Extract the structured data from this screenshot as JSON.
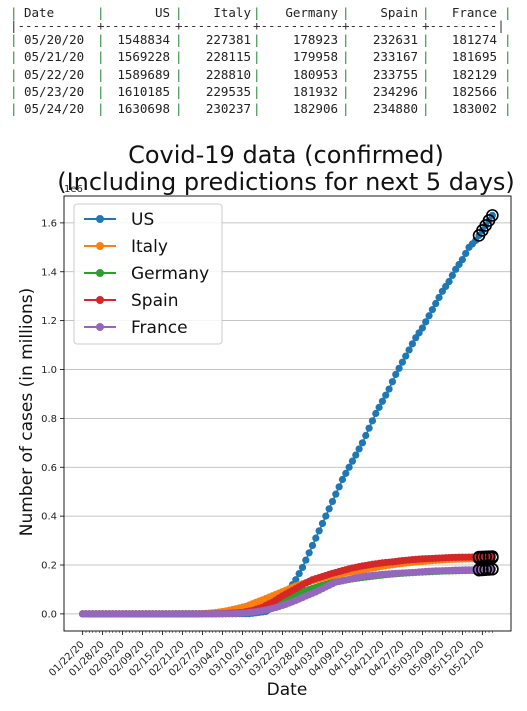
{
  "table": {
    "headers": [
      "Date",
      "US",
      "Italy",
      "Germany",
      "Spain",
      "France"
    ],
    "rows": [
      [
        "05/20/20",
        "1548834",
        "227381",
        "178923",
        "232631",
        "181274"
      ],
      [
        "05/21/20",
        "1569228",
        "228115",
        "179958",
        "233167",
        "181695"
      ],
      [
        "05/22/20",
        "1589689",
        "228810",
        "180953",
        "233755",
        "182129"
      ],
      [
        "05/23/20",
        "1610185",
        "229535",
        "181932",
        "234296",
        "182566"
      ],
      [
        "05/24/20",
        "1630698",
        "230237",
        "182906",
        "234880",
        "183002"
      ]
    ]
  },
  "chart_data": {
    "type": "line",
    "title": "Covid-19 data (confirmed)",
    "subtitle": "(Including predictions for next 5 days)",
    "xlabel": "Date",
    "ylabel": "Number of cases (in millions)",
    "offset_label": "1e6",
    "ylim": [
      -0.07,
      1.71
    ],
    "yticks": [
      "0.0",
      "0.2",
      "0.4",
      "0.6",
      "0.8",
      "1.0",
      "1.2",
      "1.4",
      "1.6"
    ],
    "xticks": [
      "01/22/20",
      "01/28/20",
      "02/03/20",
      "02/09/20",
      "02/15/20",
      "02/21/20",
      "02/27/20",
      "03/04/20",
      "03/10/20",
      "03/16/20",
      "03/22/20",
      "03/28/20",
      "04/03/20",
      "04/09/20",
      "04/15/20",
      "04/21/20",
      "04/27/20",
      "05/03/20",
      "05/09/20",
      "05/15/20",
      "05/21/20"
    ],
    "grid": "horizontal",
    "legend_position": "upper left",
    "prediction_days": 5,
    "series": [
      {
        "name": "US",
        "color": "#1f77b4",
        "points": [
          [
            0,
            0
          ],
          [
            50,
            0.0008
          ],
          [
            55,
            0.01
          ],
          [
            58,
            0.035
          ],
          [
            60,
            0.065
          ],
          [
            62,
            0.1
          ],
          [
            64,
            0.14
          ],
          [
            66,
            0.19
          ],
          [
            68,
            0.25
          ],
          [
            70,
            0.31
          ],
          [
            72,
            0.37
          ],
          [
            74,
            0.43
          ],
          [
            76,
            0.49
          ],
          [
            78,
            0.55
          ],
          [
            80,
            0.6
          ],
          [
            82,
            0.65
          ],
          [
            84,
            0.7
          ],
          [
            86,
            0.76
          ],
          [
            88,
            0.82
          ],
          [
            90,
            0.87
          ],
          [
            92,
            0.92
          ],
          [
            94,
            0.98
          ],
          [
            96,
            1.03
          ],
          [
            98,
            1.08
          ],
          [
            100,
            1.13
          ],
          [
            102,
            1.17
          ],
          [
            104,
            1.22
          ],
          [
            106,
            1.27
          ],
          [
            108,
            1.32
          ],
          [
            110,
            1.36
          ],
          [
            112,
            1.41
          ],
          [
            114,
            1.45
          ],
          [
            116,
            1.5
          ],
          [
            118,
            1.528
          ],
          [
            119,
            1.5488
          ],
          [
            120,
            1.5692
          ],
          [
            121,
            1.5897
          ],
          [
            122,
            1.6102
          ],
          [
            123,
            1.6307
          ]
        ]
      },
      {
        "name": "Italy",
        "color": "#ff7f0e",
        "points": [
          [
            0,
            0
          ],
          [
            30,
            0
          ],
          [
            35,
            0.0005
          ],
          [
            38,
            0.003
          ],
          [
            40,
            0.006
          ],
          [
            43,
            0.012
          ],
          [
            46,
            0.021
          ],
          [
            49,
            0.031
          ],
          [
            52,
            0.047
          ],
          [
            55,
            0.063
          ],
          [
            58,
            0.08
          ],
          [
            61,
            0.097
          ],
          [
            64,
            0.115
          ],
          [
            67,
            0.128
          ],
          [
            70,
            0.139
          ],
          [
            73,
            0.15
          ],
          [
            76,
            0.159
          ],
          [
            79,
            0.168
          ],
          [
            82,
            0.176
          ],
          [
            85,
            0.183
          ],
          [
            88,
            0.19
          ],
          [
            91,
            0.197
          ],
          [
            94,
            0.203
          ],
          [
            97,
            0.208
          ],
          [
            100,
            0.212
          ],
          [
            103,
            0.216
          ],
          [
            106,
            0.219
          ],
          [
            109,
            0.222
          ],
          [
            112,
            0.224
          ],
          [
            115,
            0.225
          ],
          [
            118,
            0.2266
          ],
          [
            119,
            0.2274
          ],
          [
            120,
            0.2281
          ],
          [
            121,
            0.2288
          ],
          [
            122,
            0.2295
          ],
          [
            123,
            0.2302
          ]
        ]
      },
      {
        "name": "Germany",
        "color": "#2ca02c",
        "points": [
          [
            0,
            0
          ],
          [
            35,
            0
          ],
          [
            40,
            0.0005
          ],
          [
            44,
            0.002
          ],
          [
            48,
            0.006
          ],
          [
            51,
            0.013
          ],
          [
            54,
            0.024
          ],
          [
            57,
            0.037
          ],
          [
            60,
            0.053
          ],
          [
            63,
            0.07
          ],
          [
            66,
            0.09
          ],
          [
            69,
            0.104
          ],
          [
            72,
            0.117
          ],
          [
            75,
            0.128
          ],
          [
            78,
            0.136
          ],
          [
            81,
            0.143
          ],
          [
            84,
            0.149
          ],
          [
            87,
            0.154
          ],
          [
            90,
            0.159
          ],
          [
            93,
            0.163
          ],
          [
            96,
            0.166
          ],
          [
            99,
            0.169
          ],
          [
            102,
            0.171
          ],
          [
            105,
            0.173
          ],
          [
            108,
            0.175
          ],
          [
            111,
            0.176
          ],
          [
            114,
            0.177
          ],
          [
            117,
            0.178
          ],
          [
            119,
            0.1789
          ],
          [
            120,
            0.18
          ],
          [
            121,
            0.181
          ],
          [
            122,
            0.1819
          ],
          [
            123,
            0.1829
          ]
        ]
      },
      {
        "name": "Spain",
        "color": "#d62728",
        "points": [
          [
            0,
            0
          ],
          [
            35,
            0
          ],
          [
            40,
            0.0005
          ],
          [
            44,
            0.002
          ],
          [
            48,
            0.006
          ],
          [
            51,
            0.014
          ],
          [
            54,
            0.028
          ],
          [
            57,
            0.048
          ],
          [
            60,
            0.074
          ],
          [
            63,
            0.096
          ],
          [
            66,
            0.119
          ],
          [
            69,
            0.14
          ],
          [
            72,
            0.153
          ],
          [
            75,
            0.166
          ],
          [
            78,
            0.177
          ],
          [
            81,
            0.188
          ],
          [
            84,
            0.196
          ],
          [
            87,
            0.203
          ],
          [
            90,
            0.209
          ],
          [
            93,
            0.213
          ],
          [
            96,
            0.218
          ],
          [
            99,
            0.222
          ],
          [
            102,
            0.225
          ],
          [
            105,
            0.227
          ],
          [
            108,
            0.229
          ],
          [
            111,
            0.231
          ],
          [
            114,
            0.232
          ],
          [
            117,
            0.2324
          ],
          [
            119,
            0.2326
          ],
          [
            120,
            0.2332
          ],
          [
            121,
            0.2338
          ],
          [
            122,
            0.2343
          ],
          [
            123,
            0.2349
          ]
        ]
      },
      {
        "name": "France",
        "color": "#9467bd",
        "points": [
          [
            0,
            0
          ],
          [
            40,
            0
          ],
          [
            45,
            0.0008
          ],
          [
            49,
            0.004
          ],
          [
            52,
            0.009
          ],
          [
            55,
            0.016
          ],
          [
            58,
            0.026
          ],
          [
            61,
            0.039
          ],
          [
            64,
            0.055
          ],
          [
            67,
            0.073
          ],
          [
            70,
            0.09
          ],
          [
            73,
            0.11
          ],
          [
            76,
            0.13
          ],
          [
            79,
            0.138
          ],
          [
            82,
            0.148
          ],
          [
            85,
            0.155
          ],
          [
            88,
            0.159
          ],
          [
            91,
            0.163
          ],
          [
            94,
            0.166
          ],
          [
            97,
            0.168
          ],
          [
            100,
            0.17
          ],
          [
            103,
            0.174
          ],
          [
            106,
            0.176
          ],
          [
            109,
            0.177
          ],
          [
            112,
            0.179
          ],
          [
            115,
            0.18
          ],
          [
            118,
            0.18
          ],
          [
            119,
            0.1813
          ],
          [
            120,
            0.1817
          ],
          [
            121,
            0.1821
          ],
          [
            122,
            0.1826
          ],
          [
            123,
            0.183
          ]
        ]
      }
    ]
  }
}
